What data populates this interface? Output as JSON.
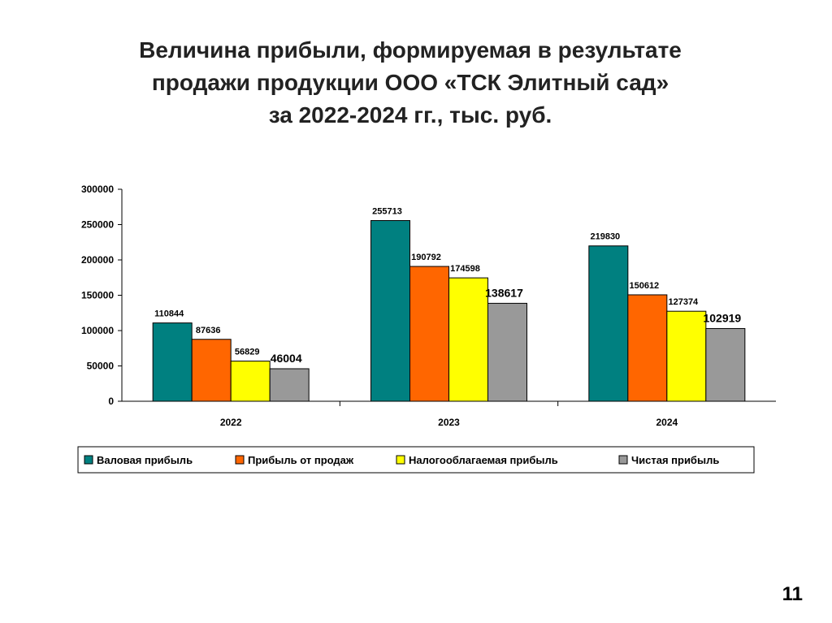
{
  "slide": {
    "title_lines": [
      "Величина прибыли, формируемая в результате",
      "продажи продукции ООО «ТСК Элитный сад»",
      "за 2022-2024 гг., тыс. руб."
    ],
    "page_number": "11"
  },
  "chart_data": {
    "type": "bar",
    "categories": [
      "2022",
      "2023",
      "2024"
    ],
    "series": [
      {
        "name": "Валовая прибыль",
        "color": "#008080",
        "values": [
          110844,
          255713,
          219830
        ]
      },
      {
        "name": "Прибыль от продаж",
        "color": "#FF6600",
        "values": [
          87636,
          190792,
          150612
        ]
      },
      {
        "name": "Налогооблагаемая прибыль",
        "color": "#FFFF00",
        "values": [
          56829,
          174598,
          127374
        ]
      },
      {
        "name": "Чистая прибыль",
        "color": "#999999",
        "values": [
          46004,
          138617,
          102919
        ]
      }
    ],
    "ylim": [
      0,
      300000
    ],
    "yticks": [
      "0",
      "50000",
      "100000",
      "150000",
      "200000",
      "250000",
      "300000"
    ],
    "grid": false,
    "legend": "bottom"
  }
}
